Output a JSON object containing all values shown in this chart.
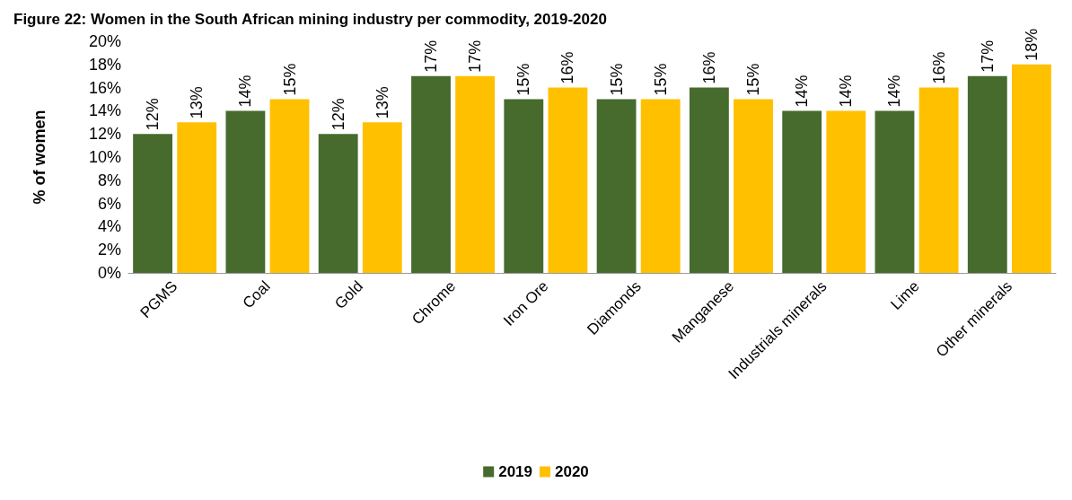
{
  "chart_data": {
    "type": "bar",
    "title": "Figure 22: Women in the South African mining industry per commodity, 2019-2020",
    "ylabel": "% of women",
    "categories": [
      "PGMS",
      "Coal",
      "Gold",
      "Chrome",
      "Iron Ore",
      "Diamonds",
      "Manganese",
      "Industrials minerals",
      "Lime",
      "Other minerals"
    ],
    "series": [
      {
        "name": "2019",
        "color": "#466b2d",
        "values": [
          12,
          14,
          12,
          17,
          15,
          15,
          16,
          14,
          14,
          17
        ],
        "value_labels": [
          "12%",
          "14%",
          "12%",
          "17%",
          "15%",
          "15%",
          "16%",
          "14%",
          "14%",
          "17%"
        ]
      },
      {
        "name": "2020",
        "color": "#ffc000",
        "values": [
          13,
          15,
          13,
          17,
          16,
          15,
          15,
          14,
          16,
          18
        ],
        "value_labels": [
          "13%",
          "15%",
          "13%",
          "17%",
          "16%",
          "15%",
          "15%",
          "14%",
          "16%",
          "18%"
        ]
      }
    ],
    "ylim": [
      0,
      20
    ],
    "yticks": [
      {
        "value": 0,
        "label": "0%"
      },
      {
        "value": 2,
        "label": "2%"
      },
      {
        "value": 4,
        "label": "4%"
      },
      {
        "value": 6,
        "label": "6%"
      },
      {
        "value": 8,
        "label": "8%"
      },
      {
        "value": 10,
        "label": "10%"
      },
      {
        "value": 12,
        "label": "12%"
      },
      {
        "value": 14,
        "label": "14%"
      },
      {
        "value": 16,
        "label": "16%"
      },
      {
        "value": 18,
        "label": "18%"
      },
      {
        "value": 20,
        "label": "20%"
      }
    ],
    "grid": false,
    "legend": "bottom"
  }
}
